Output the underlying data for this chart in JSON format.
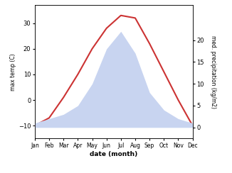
{
  "months": [
    "Jan",
    "Feb",
    "Mar",
    "Apr",
    "May",
    "Jun",
    "Jul",
    "Aug",
    "Sep",
    "Oct",
    "Nov",
    "Dec"
  ],
  "temp": [
    -10,
    -7,
    1,
    10,
    20,
    28,
    33,
    32,
    22,
    11,
    0,
    -10
  ],
  "precip": [
    1,
    2,
    3,
    5,
    10,
    18,
    22,
    17,
    8,
    4,
    2,
    1
  ],
  "temp_color": "#cc3333",
  "precip_fill_color": "#c8d4f0",
  "ylim_temp": [
    -15,
    37
  ],
  "ylim_precip": [
    -2.5,
    28
  ],
  "ylabel_left": "max temp (C)",
  "ylabel_right": "med. precipitation (kg/m2)",
  "xlabel": "date (month)",
  "right_ticks": [
    0,
    5,
    10,
    15,
    20
  ],
  "left_ticks": [
    -10,
    0,
    10,
    20,
    30
  ],
  "background_color": "#ffffff"
}
